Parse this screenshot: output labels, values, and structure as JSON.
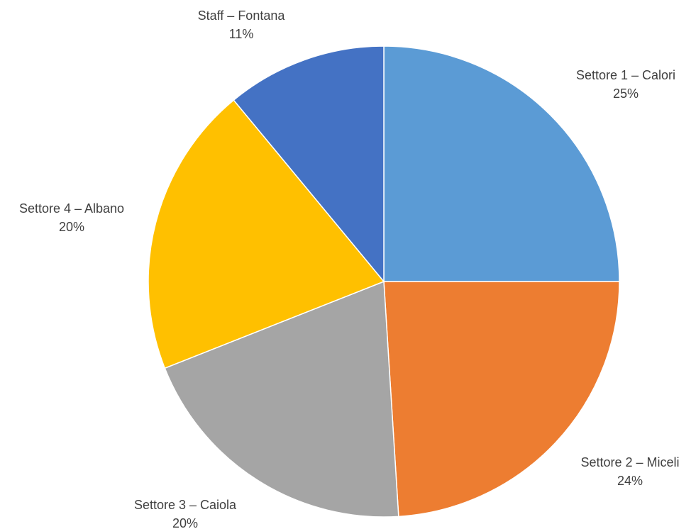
{
  "chart_data": {
    "type": "pie",
    "title": "",
    "categories": [
      "Settore 1 – Calori",
      "Settore 2 – Miceli",
      "Settore 3 – Caiola",
      "Settore 4 – Albano",
      "Staff – Fontana"
    ],
    "values": [
      25,
      24,
      20,
      20,
      11
    ],
    "percent_labels": [
      "25%",
      "24%",
      "20%",
      "20%",
      "11%"
    ],
    "colors": [
      "#5B9BD5",
      "#ED7D31",
      "#A5A5A5",
      "#FFC000",
      "#4472C4"
    ],
    "start_angle_deg": 0,
    "direction": "clockwise",
    "legend": "none",
    "data_labels": "outside"
  }
}
